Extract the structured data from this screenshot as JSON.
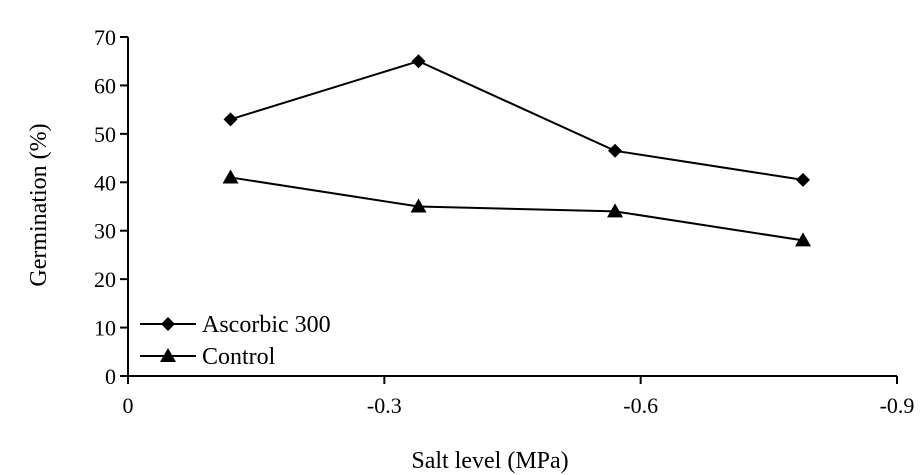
{
  "chart_data": {
    "type": "line",
    "title": "",
    "xlabel": "Salt level (MPa)",
    "ylabel": "Germination (%)",
    "xlim": [
      0,
      -0.9
    ],
    "ylim": [
      0,
      70
    ],
    "xticks": [
      0,
      -0.3,
      -0.6,
      -0.9
    ],
    "xtick_labels": [
      "0",
      "-0.3",
      "-0.6",
      "-0.9"
    ],
    "yticks": [
      0,
      10,
      20,
      30,
      40,
      50,
      60,
      70
    ],
    "ytick_labels": [
      "0",
      "10",
      "20",
      "30",
      "40",
      "50",
      "60",
      "70"
    ],
    "x": [
      -0.12,
      -0.34,
      -0.57,
      -0.79
    ],
    "series": [
      {
        "name": "Ascorbic 300",
        "marker": "diamond",
        "values": [
          53,
          65,
          46.5,
          40.5
        ]
      },
      {
        "name": "Control",
        "marker": "triangle",
        "values": [
          41,
          35,
          34,
          28
        ]
      }
    ],
    "grid": false,
    "legend_position": "bottom-left",
    "colors": {
      "line": "#000000",
      "marker": "#000000"
    }
  }
}
